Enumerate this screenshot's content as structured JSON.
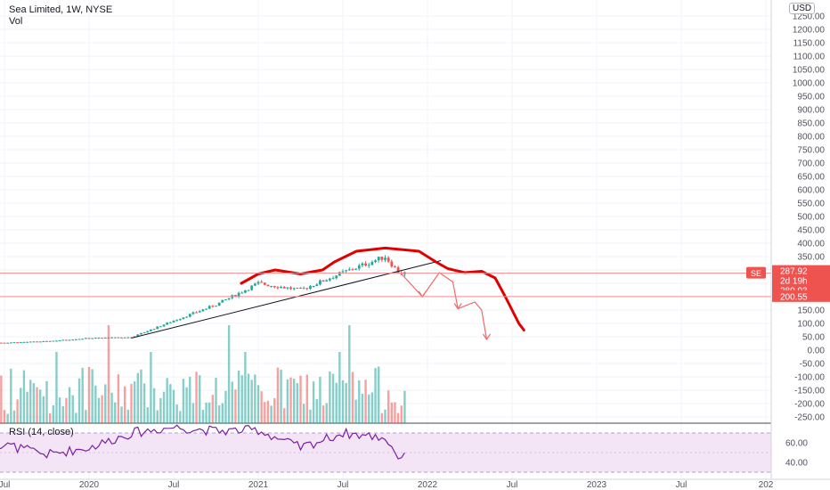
{
  "header": {
    "title": "Sea Limited, 1W, NYSE",
    "vol_label": "Vol"
  },
  "price_axis": {
    "currency": "USD",
    "ticks": [
      "1250.00",
      "1200.00",
      "1150.00",
      "1100.00",
      "1050.00",
      "1000.00",
      "950.00",
      "900.00",
      "850.00",
      "800.00",
      "750.00",
      "700.00",
      "650.00",
      "600.00",
      "550.00",
      "500.00",
      "450.00",
      "400.00",
      "350.00",
      "300.00",
      "250.00",
      "200.00",
      "150.00",
      "100.00",
      "50.00",
      "0.00",
      "-50.00",
      "-100.00",
      "-150.00",
      "-200.00",
      "-250.00"
    ]
  },
  "price_tags": {
    "symbol": "SE",
    "price": "287.92",
    "countdown": "2d 19h",
    "level": "280.93",
    "support": "200.55"
  },
  "rsi": {
    "label": "RSI (14, close)",
    "ticks": [
      "60.00",
      "40.00"
    ]
  },
  "time_axis": {
    "labels": [
      "Jul",
      "2020",
      "Jul",
      "2021",
      "Jul",
      "2022",
      "Jul",
      "2023",
      "Jul",
      "202"
    ]
  },
  "colors": {
    "up": "#26a69a",
    "down": "#ef5350",
    "rsi_line": "#7b1fa2",
    "rsi_band": "#f3e5f5",
    "drawing": "#e00000",
    "hline": "#f28c8c",
    "grid": "#f0f3fa"
  },
  "chart_data": {
    "type": "candlestick",
    "title": "Sea Limited, 1W, NYSE",
    "xlabel": "",
    "ylabel": "USD",
    "ylim": [
      -265,
      1265
    ],
    "grid": true,
    "x_range": [
      "2019-06",
      "2024-09"
    ],
    "horizontal_levels": [
      287.92,
      200.55
    ],
    "series": [
      {
        "name": "price_close",
        "x": [
          "2019-07",
          "2019-10",
          "2020-01",
          "2020-04",
          "2020-07",
          "2020-10",
          "2021-01",
          "2021-04",
          "2021-07",
          "2021-10",
          "2021-11"
        ],
        "values": [
          28,
          33,
          45,
          48,
          110,
          170,
          250,
          225,
          290,
          350,
          287.92
        ]
      },
      {
        "name": "rsi",
        "x": [
          "2019-07",
          "2019-10",
          "2020-01",
          "2020-04",
          "2020-07",
          "2020-10",
          "2021-01",
          "2021-04",
          "2021-07",
          "2021-10",
          "2021-11"
        ],
        "values": [
          58,
          48,
          55,
          70,
          76,
          72,
          73,
          55,
          70,
          65,
          45
        ]
      }
    ]
  }
}
